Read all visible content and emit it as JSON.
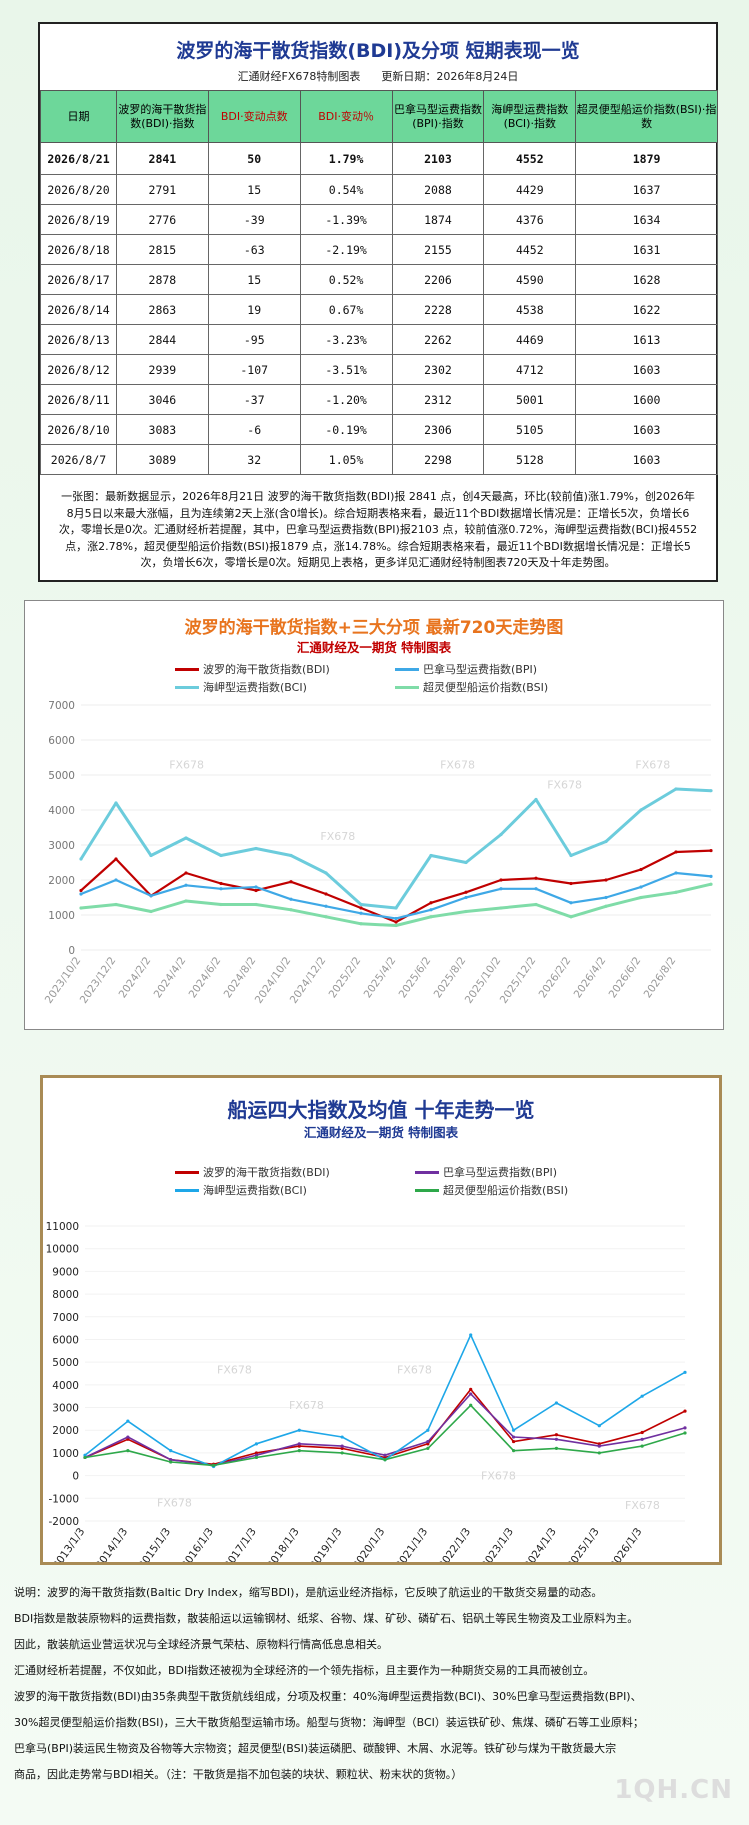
{
  "table": {
    "title": "波罗的海干散货指数(BDI)及分项  短期表现一览",
    "subtitle_left": "汇通财经FX678特制图表",
    "subtitle_right": "更新日期：2026年8月24日",
    "headers": [
      "日期",
      "波罗的海干散货指数(BDI)·指数",
      "BDI·变动点数",
      "BDI·变动％",
      "巴拿马型运费指数(BPI)·指数",
      "海岬型运费指数(BCI)·指数",
      "超灵便型船运价指数(BSI)·指数"
    ],
    "rows": [
      [
        "2026/8/21",
        "2841",
        "50",
        "1.79%",
        "2103",
        "4552",
        "1879"
      ],
      [
        "2026/8/20",
        "2791",
        "15",
        "0.54%",
        "2088",
        "4429",
        "1637"
      ],
      [
        "2026/8/19",
        "2776",
        "-39",
        "-1.39%",
        "1874",
        "4376",
        "1634"
      ],
      [
        "2026/8/18",
        "2815",
        "-63",
        "-2.19%",
        "2155",
        "4452",
        "1631"
      ],
      [
        "2026/8/17",
        "2878",
        "15",
        "0.52%",
        "2206",
        "4590",
        "1628"
      ],
      [
        "2026/8/14",
        "2863",
        "19",
        "0.67%",
        "2228",
        "4538",
        "1622"
      ],
      [
        "2026/8/13",
        "2844",
        "-95",
        "-3.23%",
        "2262",
        "4469",
        "1613"
      ],
      [
        "2026/8/12",
        "2939",
        "-107",
        "-3.51%",
        "2302",
        "4712",
        "1603"
      ],
      [
        "2026/8/11",
        "3046",
        "-37",
        "-1.20%",
        "2312",
        "5001",
        "1600"
      ],
      [
        "2026/8/10",
        "3083",
        "-6",
        "-0.19%",
        "2306",
        "5105",
        "1603"
      ],
      [
        "2026/8/7",
        "3089",
        "32",
        "1.05%",
        "2298",
        "5128",
        "1603"
      ]
    ],
    "note": "一张图：最新数据显示，2026年8月21日 波罗的海干散货指数(BDI)报 2841 点，创4天最高，环比(较前值)涨1.79%，创2026年8月5日以来最大涨幅，且为连续第2天上涨(含0增长)。综合短期表格来看，最近11个BDI数据增长情况是：正增长5次，负增长6次，零增长是0次。汇通财经析若提醒，其中，巴拿马型运费指数(BPI)报2103 点，较前值涨0.72%，海岬型运费指数(BCI)报4552 点，涨2.78%，超灵便型船运价指数(BSI)报1879 点，涨14.78%。综合短期表格来看，最近11个BDI数据增长情况是：正增长5次，负增长6次，零增长是0次。短期见上表格，更多详见汇通财经特制图表720天及十年走势图。"
  },
  "chart_data": [
    {
      "type": "line",
      "title": "波罗的海干散货指数+三大分项  最新720天走势图",
      "subtitle": "汇通财经及一期货  特制图表",
      "ylim": [
        0,
        7000
      ],
      "yticks": [
        0,
        1000,
        2000,
        3000,
        4000,
        5000,
        6000,
        7000
      ],
      "x": [
        "2023/10/2",
        "2023/12/2",
        "2024/2/2",
        "2024/4/2",
        "2024/6/2",
        "2024/8/2",
        "2024/10/2",
        "2024/12/2",
        "2025/2/2",
        "2025/4/2",
        "2025/6/2",
        "2025/8/2",
        "2025/10/2",
        "2025/12/2",
        "2026/2/2",
        "2026/4/2",
        "2026/6/2",
        "2026/8/2",
        "2026/8/21"
      ],
      "xticks": [
        "2023/10/2",
        "2023/12/2",
        "2024/2/2",
        "2024/4/2",
        "2024/6/2",
        "2024/8/2",
        "2024/10/2",
        "2024/12/2",
        "2025/2/2",
        "2025/4/2",
        "2025/6/2",
        "2025/8/2",
        "2025/10/2",
        "2025/12/2",
        "2026/2/2",
        "2026/4/2",
        "2026/6/2",
        "2026/8/2"
      ],
      "legend_position": "top",
      "watermark": "FX678",
      "series": [
        {
          "name": "波罗的海干散货指数(BDI)",
          "color": "#c00000",
          "values": [
            1700,
            2600,
            1550,
            2200,
            1900,
            1700,
            1950,
            1600,
            1200,
            800,
            1350,
            1650,
            2000,
            2050,
            1900,
            2000,
            2300,
            2800,
            2841
          ]
        },
        {
          "name": "巴拿马型运费指数(BPI)",
          "color": "#3ea8e6",
          "values": [
            1600,
            2000,
            1550,
            1850,
            1750,
            1800,
            1450,
            1250,
            1050,
            900,
            1150,
            1500,
            1750,
            1750,
            1350,
            1500,
            1800,
            2200,
            2103
          ]
        },
        {
          "name": "海岬型运费指数(BCI)",
          "color": "#6cccdc",
          "values": [
            2600,
            4200,
            2700,
            3200,
            2700,
            2900,
            2700,
            2200,
            1300,
            1200,
            2700,
            2500,
            3300,
            4300,
            2700,
            3100,
            4000,
            4600,
            4552
          ]
        },
        {
          "name": "超灵便型船运价指数(BSI)",
          "color": "#7fdca8",
          "values": [
            1200,
            1300,
            1100,
            1400,
            1300,
            1300,
            1150,
            950,
            750,
            700,
            950,
            1100,
            1200,
            1300,
            950,
            1250,
            1500,
            1650,
            1879
          ]
        }
      ]
    },
    {
      "type": "line",
      "title": "船运四大指数及均值 十年走势一览",
      "subtitle": "汇通财经及一期货 特制图表",
      "ylim": [
        -2000,
        11000
      ],
      "yticks": [
        -2000,
        -1000,
        0,
        1000,
        2000,
        3000,
        4000,
        5000,
        6000,
        7000,
        8000,
        9000,
        10000,
        11000
      ],
      "x": [
        "2013/1/3",
        "2014/1/3",
        "2015/1/3",
        "2016/1/3",
        "2017/1/3",
        "2018/1/3",
        "2019/1/3",
        "2020/1/3",
        "2021/1/3",
        "2022/1/3",
        "2023/1/3",
        "2024/1/3",
        "2025/1/3",
        "2026/1/3",
        "2026/8/21"
      ],
      "xticks": [
        "2013/1/3",
        "2014/1/3",
        "2015/1/3",
        "2016/1/3",
        "2017/1/3",
        "2018/1/3",
        "2019/1/3",
        "2020/1/3",
        "2021/1/3",
        "2022/1/3",
        "2023/1/3",
        "2024/1/3",
        "2025/1/3",
        "2026/1/3"
      ],
      "legend_position": "top",
      "watermark": "FX678",
      "series": [
        {
          "name": "波罗的海干散货指数(BDI)",
          "color": "#c00000",
          "values": [
            800,
            1600,
            700,
            500,
            1000,
            1300,
            1200,
            800,
            1400,
            3800,
            1500,
            1800,
            1400,
            1900,
            2841
          ]
        },
        {
          "name": "巴拿马型运费指数(BPI)",
          "color": "#7030a0",
          "values": [
            800,
            1700,
            700,
            450,
            900,
            1400,
            1300,
            900,
            1500,
            3600,
            1700,
            1600,
            1300,
            1600,
            2103
          ]
        },
        {
          "name": "海岬型运费指数(BCI)",
          "color": "#1ea7e8",
          "values": [
            900,
            2400,
            1100,
            400,
            1400,
            2000,
            1700,
            700,
            2000,
            6200,
            2000,
            3200,
            2200,
            3500,
            4552
          ]
        },
        {
          "name": "超灵便型船运价指数(BSI)",
          "color": "#2ea84a",
          "values": [
            800,
            1100,
            600,
            450,
            800,
            1100,
            1000,
            700,
            1200,
            3100,
            1100,
            1200,
            1000,
            1300,
            1879
          ]
        }
      ]
    }
  ],
  "description": [
    "说明：波罗的海干散货指数(Baltic Dry Index，缩写BDI)，是航运业经济指标，它反映了航运业的干散货交易量的动态。",
    "BDI指数是散装原物料的运费指数，散装船运以运输钢材、纸浆、谷物、煤、矿砂、磷矿石、铝矾土等民生物资及工业原料为主。",
    "因此，散装航运业营运状况与全球经济景气荣枯、原物料行情高低息息相关。",
    "汇通财经析若提醒，不仅如此，BDI指数还被视为全球经济的一个领先指标，且主要作为一种期货交易的工具而被创立。",
    "波罗的海干散货指数(BDI)由35条典型干散货航线组成，分项及权重：40%海岬型运费指数(BCI)、30%巴拿马型运费指数(BPI)、",
    "30%超灵便型船运价指数(BSI)，三大干散货船型运输市场。船型与货物：海岬型（BCI）装运铁矿砂、焦煤、磷矿石等工业原料；",
    "巴拿马(BPI)装运民生物资及谷物等大宗物资；超灵便型(BSI)装运磷肥、碳酸钾、木屑、水泥等。铁矿砂与煤为干散货最大宗",
    "商品，因此走势常与BDI相关。（注：干散货是指不加包装的块状、颗粒状、粉末状的货物。）"
  ],
  "brand": "1QH.CN"
}
